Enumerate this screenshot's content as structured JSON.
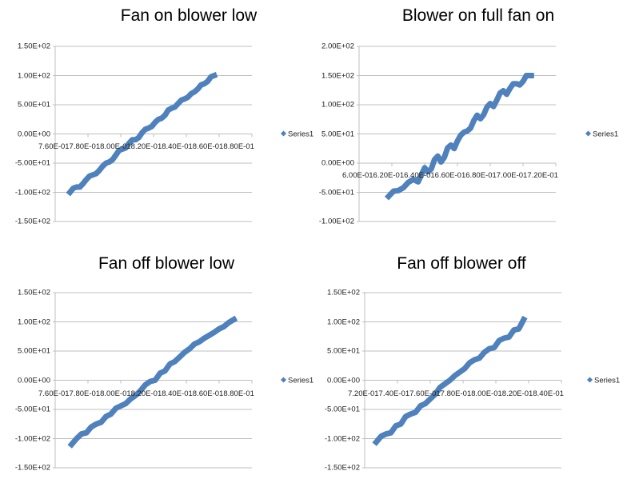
{
  "chart_data": [
    {
      "type": "scatter",
      "title": "Fan on blower low",
      "xlabel": "",
      "ylabel": "",
      "xlim": [
        0.76,
        0.88
      ],
      "ylim": [
        -150,
        150
      ],
      "x_tick_labels": [
        "7.60E-01",
        "7.80E-01",
        "8.00E-01",
        "8.20E-01",
        "8.40E-01",
        "8.60E-01",
        "8.80E-01"
      ],
      "x_tick_label_text": "7.60E-017.80E-018.00E-018.20E-018.40E-018.60E-018.80E-01",
      "y_tick_labels": [
        "1.50E+02",
        "1.00E+02",
        "5.00E+01",
        "0.00E+00",
        "-5.00E+01",
        "-1.00E+02",
        "-1.50E+02"
      ],
      "grid": "horizontal",
      "legend": {
        "entries": [
          "Series1"
        ],
        "position": "right"
      },
      "series": [
        {
          "name": "Series1",
          "color": "#4F81BD",
          "x": [
            0.769,
            0.771,
            0.773,
            0.775,
            0.777,
            0.779,
            0.781,
            0.783,
            0.785,
            0.787,
            0.789,
            0.791,
            0.793,
            0.795,
            0.797,
            0.799,
            0.801,
            0.803,
            0.805,
            0.807,
            0.809,
            0.811,
            0.813,
            0.815,
            0.817,
            0.819,
            0.821,
            0.823,
            0.825,
            0.827,
            0.829,
            0.831,
            0.833,
            0.835,
            0.837,
            0.839,
            0.841,
            0.843,
            0.845,
            0.847,
            0.849,
            0.851,
            0.853,
            0.855,
            0.857
          ],
          "y": [
            -100,
            -93,
            -91,
            -91,
            -85,
            -78,
            -72,
            -70,
            -68,
            -62,
            -55,
            -50,
            -48,
            -44,
            -36,
            -28,
            -26,
            -24,
            -16,
            -10,
            -10,
            -6,
            2,
            8,
            10,
            13,
            20,
            25,
            27,
            32,
            41,
            44,
            46,
            52,
            58,
            60,
            63,
            69,
            72,
            77,
            84,
            86,
            90,
            98,
            100
          ]
        }
      ]
    },
    {
      "type": "scatter",
      "title": "Blower on full fan on",
      "xlabel": "",
      "ylabel": "",
      "xlim": [
        0.6,
        0.72
      ],
      "ylim": [
        -100,
        200
      ],
      "x_tick_labels": [
        "6.00E-01",
        "6.20E-01",
        "6.40E-01",
        "6.60E-01",
        "6.80E-01",
        "7.00E-01",
        "7.20E-01"
      ],
      "x_tick_label_text": "6.00E-016.20E-016.40E-016.60E-016.80E-017.00E-017.20E-01",
      "y_tick_labels": [
        "2.00E+02",
        "1.50E+02",
        "1.00E+02",
        "5.00E+01",
        "0.00E+00",
        "-5.00E+01",
        "-1.00E+02"
      ],
      "grid": "horizontal",
      "legend": {
        "entries": [
          "Series1"
        ],
        "position": "right"
      },
      "series": [
        {
          "name": "Series1",
          "color": "#4F81BD",
          "x": [
            0.618,
            0.621,
            0.624,
            0.627,
            0.63,
            0.633,
            0.636,
            0.638,
            0.64,
            0.642,
            0.644,
            0.646,
            0.648,
            0.65,
            0.652,
            0.654,
            0.656,
            0.658,
            0.66,
            0.662,
            0.664,
            0.666,
            0.668,
            0.67,
            0.672,
            0.674,
            0.676,
            0.678,
            0.68,
            0.682,
            0.684,
            0.686,
            0.688,
            0.69,
            0.692,
            0.694,
            0.696,
            0.698,
            0.7,
            0.702,
            0.705
          ],
          "y": [
            -57,
            -48,
            -47,
            -42,
            -33,
            -28,
            -32,
            -20,
            -8,
            -15,
            -10,
            6,
            12,
            2,
            10,
            26,
            31,
            25,
            38,
            48,
            53,
            55,
            60,
            73,
            82,
            76,
            83,
            96,
            102,
            97,
            108,
            120,
            124,
            118,
            128,
            136,
            136,
            134,
            140,
            150,
            150
          ]
        }
      ]
    },
    {
      "type": "scatter",
      "title": "Fan off blower low",
      "xlabel": "",
      "ylabel": "",
      "xlim": [
        0.76,
        0.88
      ],
      "ylim": [
        -150,
        150
      ],
      "x_tick_labels": [
        "7.60E-01",
        "7.80E-01",
        "8.00E-01",
        "8.20E-01",
        "8.40E-01",
        "8.60E-01",
        "8.80E-01"
      ],
      "x_tick_label_text": "7.60E-017.80E-018.00E-018.20E-018.40E-018.60E-018.80E-01",
      "y_tick_labels": [
        "1.50E+02",
        "1.00E+02",
        "5.00E+01",
        "0.00E+00",
        "-5.00E+01",
        "-1.00E+02",
        "-1.50E+02"
      ],
      "grid": "horizontal",
      "legend": {
        "entries": [
          "Series1"
        ],
        "position": "right"
      },
      "series": [
        {
          "name": "Series1",
          "color": "#4F81BD",
          "x": [
            0.77,
            0.773,
            0.776,
            0.779,
            0.782,
            0.785,
            0.788,
            0.791,
            0.794,
            0.797,
            0.8,
            0.803,
            0.806,
            0.809,
            0.812,
            0.815,
            0.818,
            0.821,
            0.824,
            0.827,
            0.83,
            0.833,
            0.836,
            0.839,
            0.842,
            0.845,
            0.848,
            0.851,
            0.854,
            0.857,
            0.86,
            0.863,
            0.866,
            0.869
          ],
          "y": [
            -110,
            -100,
            -92,
            -90,
            -80,
            -75,
            -72,
            -62,
            -58,
            -48,
            -44,
            -40,
            -32,
            -26,
            -18,
            -8,
            -2,
            0,
            12,
            16,
            28,
            32,
            40,
            48,
            54,
            62,
            66,
            72,
            77,
            82,
            88,
            92,
            99,
            104
          ]
        }
      ]
    },
    {
      "type": "scatter",
      "title": "Fan off blower off",
      "xlabel": "",
      "ylabel": "",
      "xlim": [
        0.72,
        0.84
      ],
      "ylim": [
        -150,
        150
      ],
      "x_tick_labels": [
        "7.20E-01",
        "7.40E-01",
        "7.60E-01",
        "7.80E-01",
        "8.00E-01",
        "8.20E-01",
        "8.40E-01"
      ],
      "x_tick_label_text": "7.20E-017.40E-017.60E-017.80E-018.00E-018.20E-018.40E-01",
      "y_tick_labels": [
        "1.50E+02",
        "1.00E+02",
        "5.00E+01",
        "0.00E+00",
        "-5.00E+01",
        "-1.00E+02",
        "-1.50E+02"
      ],
      "grid": "horizontal",
      "legend": {
        "entries": [
          "Series1"
        ],
        "position": "right"
      },
      "series": [
        {
          "name": "Series1",
          "color": "#4F81BD",
          "x": [
            0.727,
            0.73,
            0.733,
            0.736,
            0.739,
            0.742,
            0.745,
            0.748,
            0.751,
            0.754,
            0.757,
            0.76,
            0.763,
            0.766,
            0.769,
            0.772,
            0.775,
            0.778,
            0.781,
            0.784,
            0.787,
            0.79,
            0.793,
            0.796,
            0.799,
            0.802,
            0.805,
            0.808,
            0.811,
            0.814,
            0.817
          ],
          "y": [
            -106,
            -96,
            -92,
            -90,
            -78,
            -75,
            -62,
            -58,
            -55,
            -44,
            -40,
            -32,
            -24,
            -12,
            -6,
            0,
            8,
            14,
            20,
            30,
            35,
            38,
            48,
            54,
            56,
            68,
            72,
            74,
            86,
            88,
            104
          ]
        }
      ]
    }
  ],
  "charts": [
    {
      "title": "Fan on blower low",
      "legend": "Series1"
    },
    {
      "title": "Blower on full fan on",
      "legend": "Series1"
    },
    {
      "title": "Fan off blower low",
      "legend": "Series1"
    },
    {
      "title": "Fan off blower off",
      "legend": "Series1"
    }
  ]
}
